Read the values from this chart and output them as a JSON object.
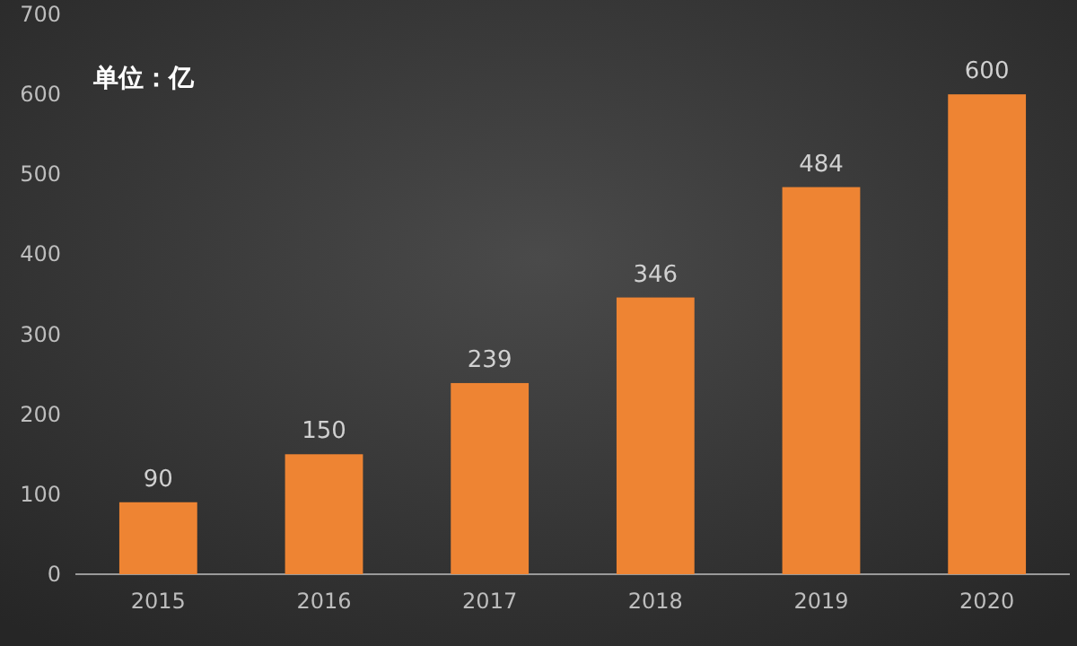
{
  "chart_data": {
    "type": "bar",
    "ylabel": "单位：亿",
    "categories": [
      "2015",
      "2016",
      "2017",
      "2018",
      "2019",
      "2020"
    ],
    "values": [
      90,
      150,
      239,
      346,
      484,
      600
    ],
    "color": "#ee8433",
    "ylim": [
      0,
      700
    ],
    "yticks": [
      0,
      100,
      200,
      300,
      400,
      500,
      600,
      700
    ],
    "data_labels": true
  }
}
